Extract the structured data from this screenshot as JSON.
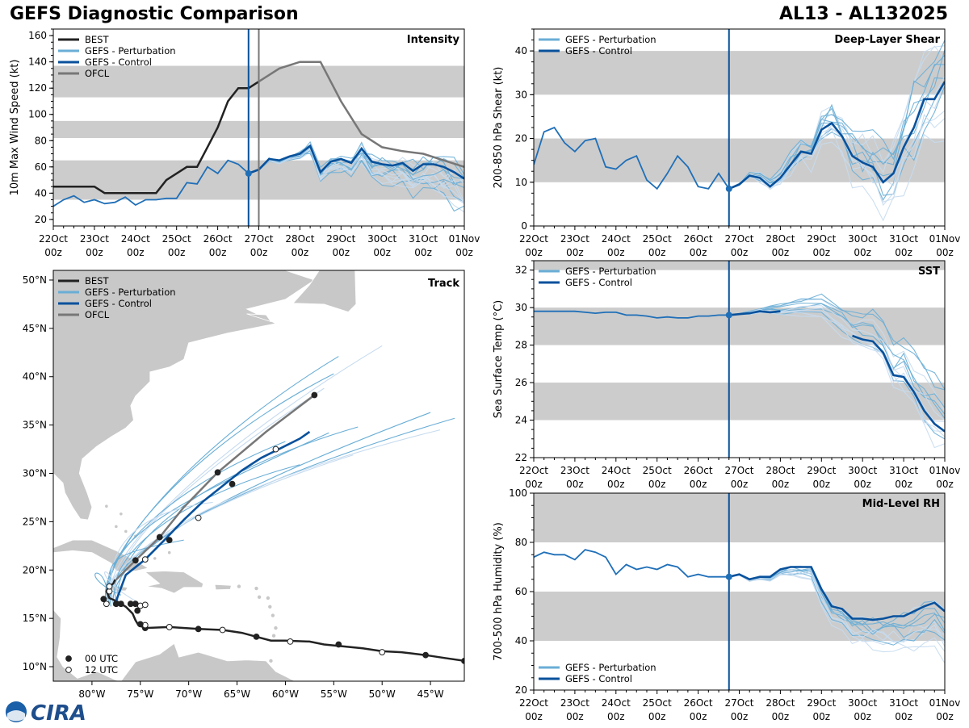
{
  "header": {
    "title": "GEFS Diagnostic Comparison",
    "storm": "AL13 - AL132025"
  },
  "colors": {
    "best": "#222222",
    "pert": "#6aaed6",
    "pert_light": "#c6dbef",
    "control": "#08519c",
    "ofcl": "#777777",
    "band": "#cccccc",
    "land": "#c8c8c8"
  },
  "time_axis": {
    "ticks": [
      "22Oct",
      "23Oct",
      "24Oct",
      "25Oct",
      "26Oct",
      "27Oct",
      "28Oct",
      "29Oct",
      "30Oct",
      "31Oct",
      "01Nov"
    ],
    "sub": "00z",
    "current_day": 4.75
  },
  "chart_data": [
    {
      "id": "intensity",
      "type": "line",
      "title": "Intensity",
      "ylabel": "10m Max Wind Speed (kt)",
      "ylim": [
        15,
        165
      ],
      "yticks": [
        20,
        40,
        60,
        80,
        100,
        120,
        140,
        160
      ],
      "bands": [
        [
          35,
          65
        ],
        [
          82,
          95
        ],
        [
          113,
          137
        ]
      ],
      "init_day": 4.75,
      "ofcl_init_day": 5.0,
      "legend": [
        "BEST",
        "GEFS - Perturbation",
        "GEFS - Control",
        "OFCL"
      ],
      "best": {
        "name": "BEST",
        "x": [
          0,
          0.25,
          0.5,
          0.75,
          1.0,
          1.25,
          1.5,
          1.75,
          2.0,
          2.25,
          2.5,
          2.75,
          3.0,
          3.25,
          3.5,
          3.75,
          4.0,
          4.25,
          4.5,
          4.75,
          5.0
        ],
        "values": [
          45,
          45,
          45,
          45,
          45,
          40,
          40,
          40,
          40,
          40,
          40,
          50,
          55,
          60,
          60,
          75,
          90,
          110,
          120,
          120,
          125
        ]
      },
      "hist": {
        "name": "GEFS - Control (analysis)",
        "x": [
          0,
          0.25,
          0.5,
          0.75,
          1.0,
          1.25,
          1.5,
          1.75,
          2.0,
          2.25,
          2.5,
          2.75,
          3.0,
          3.25,
          3.5,
          3.75,
          4.0,
          4.25,
          4.5,
          4.75
        ],
        "values": [
          30,
          35,
          38,
          33,
          35,
          32,
          33,
          37,
          31,
          35,
          35,
          36,
          36,
          48,
          47,
          60,
          55,
          65,
          62,
          55
        ]
      },
      "control": {
        "name": "GEFS - Control",
        "x": [
          4.75,
          5.0,
          5.25,
          5.5,
          5.75,
          6.0,
          6.25,
          6.5,
          6.75,
          7.0,
          7.25,
          7.5,
          7.75,
          8.0,
          8.25,
          8.5,
          8.75,
          9.0,
          9.25,
          9.5,
          9.75,
          10.0
        ],
        "values": [
          55,
          58,
          66,
          65,
          68,
          70,
          76,
          56,
          64,
          66,
          63,
          74,
          64,
          62,
          61,
          63,
          57,
          62,
          62,
          60,
          56,
          51
        ]
      },
      "ofcl": {
        "name": "OFCL",
        "x": [
          5.0,
          5.5,
          6.0,
          6.5,
          7.0,
          7.5,
          8.0,
          8.5,
          9.0,
          9.5,
          10.0
        ],
        "values": [
          125,
          135,
          140,
          140,
          110,
          85,
          75,
          72,
          70,
          65,
          60
        ]
      },
      "perturbations": [
        {
          "end": 35,
          "amp": 9
        },
        {
          "end": 40,
          "amp": 10
        },
        {
          "end": 45,
          "amp": 8
        },
        {
          "end": 48,
          "amp": 9
        },
        {
          "end": 50,
          "amp": 10
        },
        {
          "end": 30,
          "amp": 7
        },
        {
          "end": 25,
          "amp": 6
        },
        {
          "end": 42,
          "amp": 11
        },
        {
          "end": 55,
          "amp": 9
        },
        {
          "end": 38,
          "amp": 8
        },
        {
          "end": 33,
          "amp": 12
        },
        {
          "end": 46,
          "amp": 8
        },
        {
          "end": 52,
          "amp": 10
        },
        {
          "end": 36,
          "amp": 9
        },
        {
          "end": 44,
          "amp": 7
        },
        {
          "end": 28,
          "amp": 8
        }
      ]
    },
    {
      "id": "shear",
      "type": "line",
      "title": "Deep-Layer Shear",
      "ylabel": "200-850 hPa Shear (kt)",
      "ylim": [
        0,
        45
      ],
      "yticks": [
        0,
        10,
        20,
        30,
        40
      ],
      "bands": [
        [
          10,
          20
        ],
        [
          30,
          40
        ]
      ],
      "init_day": 4.75,
      "legend": [
        "GEFS - Perturbation",
        "GEFS - Control"
      ],
      "hist": {
        "name": "GEFS - Control (analysis)",
        "x": [
          0,
          0.25,
          0.5,
          0.75,
          1.0,
          1.25,
          1.5,
          1.75,
          2.0,
          2.25,
          2.5,
          2.75,
          3.0,
          3.25,
          3.5,
          3.75,
          4.0,
          4.25,
          4.5,
          4.75
        ],
        "values": [
          14,
          21.5,
          22.5,
          19,
          17,
          19.5,
          20,
          13.5,
          13,
          15,
          16,
          10.5,
          8.5,
          12,
          16,
          13.5,
          9,
          8.5,
          12,
          8.5
        ]
      },
      "control": {
        "name": "GEFS - Control",
        "x": [
          4.75,
          5.0,
          5.25,
          5.5,
          5.75,
          6.0,
          6.25,
          6.5,
          6.75,
          7.0,
          7.25,
          7.5,
          7.75,
          8.0,
          8.25,
          8.5,
          8.75,
          9.0,
          9.25,
          9.5,
          9.75,
          10.0
        ],
        "values": [
          8.5,
          9.5,
          11.5,
          11,
          9,
          11,
          14,
          17,
          16.5,
          22,
          23.5,
          20.5,
          16,
          14.5,
          13.5,
          10,
          12,
          18,
          22.5,
          29,
          29,
          33
        ]
      },
      "perturbations": [
        {
          "end": 38,
          "amp": 4
        },
        {
          "end": 42,
          "amp": 5
        },
        {
          "end": 30,
          "amp": 4
        },
        {
          "end": 25,
          "amp": 5
        },
        {
          "end": 35,
          "amp": 6
        },
        {
          "end": 44,
          "amp": 4
        },
        {
          "end": 28,
          "amp": 5
        },
        {
          "end": 33,
          "amp": 4
        },
        {
          "end": 40,
          "amp": 6
        },
        {
          "end": 22,
          "amp": 4
        },
        {
          "end": 36,
          "amp": 5
        },
        {
          "end": 31,
          "amp": 4
        },
        {
          "end": 43,
          "amp": 5
        },
        {
          "end": 27,
          "amp": 4
        }
      ]
    },
    {
      "id": "sst",
      "type": "line",
      "title": "SST",
      "ylabel": "Sea Surface Temp (°C)",
      "ylim": [
        22,
        32.5
      ],
      "yticks": [
        22,
        24,
        26,
        28,
        30,
        32
      ],
      "bands": [
        [
          24,
          26
        ],
        [
          28,
          30
        ],
        [
          32,
          32.5
        ]
      ],
      "init_day": 4.75,
      "legend": [
        "GEFS - Perturbation",
        "GEFS - Control"
      ],
      "hist": {
        "name": "GEFS - Control (analysis)",
        "x": [
          0,
          0.25,
          0.5,
          0.75,
          1.0,
          1.25,
          1.5,
          1.75,
          2.0,
          2.25,
          2.5,
          2.75,
          3.0,
          3.25,
          3.5,
          3.75,
          4.0,
          4.25,
          4.5,
          4.75
        ],
        "values": [
          29.8,
          29.8,
          29.8,
          29.8,
          29.8,
          29.75,
          29.7,
          29.75,
          29.75,
          29.6,
          29.6,
          29.55,
          29.45,
          29.5,
          29.45,
          29.45,
          29.55,
          29.55,
          29.6,
          29.6
        ]
      },
      "control_seg1": {
        "x": [
          4.75,
          5.0,
          5.25,
          5.5,
          5.75,
          6.0
        ],
        "values": [
          29.6,
          29.65,
          29.7,
          29.8,
          29.75,
          29.8
        ]
      },
      "control_seg2": {
        "x": [
          7.75,
          8.0,
          8.25,
          8.5,
          8.75,
          9.0,
          9.25,
          9.5,
          9.75,
          10.0
        ],
        "values": [
          28.5,
          28.3,
          28.2,
          27.6,
          26.4,
          26.3,
          25.5,
          24.5,
          23.8,
          23.4
        ]
      },
      "perturbations": [
        {
          "end": 24.2,
          "amp": 0.5
        },
        {
          "end": 25.0,
          "amp": 0.6
        },
        {
          "end": 23.0,
          "amp": 0.5
        },
        {
          "end": 22.4,
          "amp": 0.4
        },
        {
          "end": 24.8,
          "amp": 0.6
        },
        {
          "end": 23.6,
          "amp": 0.5
        },
        {
          "end": 25.8,
          "amp": 0.4
        },
        {
          "end": 22.9,
          "amp": 0.5
        },
        {
          "end": 24.5,
          "amp": 0.6
        },
        {
          "end": 23.3,
          "amp": 0.5
        },
        {
          "end": 26.0,
          "amp": 0.4
        },
        {
          "end": 24.0,
          "amp": 0.5
        }
      ]
    },
    {
      "id": "rh",
      "type": "line",
      "title": "Mid-Level RH",
      "ylabel": "700-500 hPa Humidity (%)",
      "ylim": [
        20,
        100
      ],
      "yticks": [
        20,
        40,
        60,
        80,
        100
      ],
      "bands": [
        [
          40,
          60
        ],
        [
          80,
          100
        ]
      ],
      "init_day": 4.75,
      "legend": [
        "GEFS - Perturbation",
        "GEFS - Control"
      ],
      "hist": {
        "name": "GEFS - Control (analysis)",
        "x": [
          0,
          0.25,
          0.5,
          0.75,
          1.0,
          1.25,
          1.5,
          1.75,
          2.0,
          2.25,
          2.5,
          2.75,
          3.0,
          3.25,
          3.5,
          3.75,
          4.0,
          4.25,
          4.5,
          4.75
        ],
        "values": [
          74,
          76,
          75,
          75,
          73,
          77,
          76,
          74,
          67,
          71,
          69,
          70,
          69,
          71,
          70,
          66,
          67,
          66,
          66,
          66
        ]
      },
      "control": {
        "name": "GEFS - Control",
        "x": [
          4.75,
          5.0,
          5.25,
          5.5,
          5.75,
          6.0,
          6.25,
          6.5,
          6.75,
          7.0,
          7.25,
          7.5,
          7.75,
          8.0,
          8.25,
          8.5,
          8.75,
          9.0,
          9.25,
          9.5,
          9.75,
          10.0
        ],
        "values": [
          66,
          67,
          65,
          66,
          66,
          69,
          70,
          70,
          70,
          61,
          54,
          53,
          49,
          49,
          48.5,
          49,
          50,
          50,
          52,
          54,
          55.5,
          52
        ]
      },
      "perturbations": [
        {
          "end": 45,
          "amp": 3
        },
        {
          "end": 40,
          "amp": 3
        },
        {
          "end": 50,
          "amp": 4
        },
        {
          "end": 35,
          "amp": 3
        },
        {
          "end": 48,
          "amp": 3
        },
        {
          "end": 42,
          "amp": 4
        },
        {
          "end": 38,
          "amp": 3
        },
        {
          "end": 52,
          "amp": 3
        },
        {
          "end": 44,
          "amp": 4
        },
        {
          "end": 33,
          "amp": 3
        },
        {
          "end": 47,
          "amp": 3
        },
        {
          "end": 41,
          "amp": 4
        }
      ]
    },
    {
      "id": "track",
      "type": "scatter",
      "title": "Track",
      "lon_range": [
        -84,
        -41.5
      ],
      "lat_range": [
        8.5,
        51
      ],
      "lon_ticks": [
        -80,
        -75,
        -70,
        -65,
        -60,
        -55,
        -50,
        -45
      ],
      "lon_labels": [
        "80°W",
        "75°W",
        "70°W",
        "65°W",
        "60°W",
        "55°W",
        "50°W",
        "45°W"
      ],
      "lat_ticks": [
        10,
        15,
        20,
        25,
        30,
        35,
        40,
        45,
        50
      ],
      "lat_labels": [
        "10°N",
        "15°N",
        "20°N",
        "25°N",
        "30°N",
        "35°N",
        "40°N",
        "45°N",
        "50°N"
      ],
      "legend": [
        "BEST",
        "GEFS - Perturbation",
        "GEFS - Control",
        "OFCL"
      ],
      "marker_legend": [
        "00 UTC",
        "12 UTC"
      ],
      "best": {
        "lon": [
          -41.5,
          -43.5,
          -45.5,
          -48,
          -50,
          -52,
          -54,
          -56,
          -57.5,
          -60,
          -61.5,
          -63,
          -64.5,
          -66.5,
          -69,
          -72,
          -74.5,
          -75.2,
          -75.5,
          -75.8,
          -76.5,
          -77.5,
          -78.2,
          -78.5,
          -78.3,
          -77.8,
          -77.6
        ],
        "lat": [
          10.6,
          10.9,
          11.2,
          11.5,
          11.6,
          11.9,
          12.1,
          12.3,
          12.6,
          12.7,
          12.7,
          13.1,
          13.5,
          13.8,
          13.9,
          14.1,
          14.0,
          14.3,
          14.8,
          15.5,
          16.2,
          16.8,
          17.1,
          17.8,
          18.2,
          18.6,
          19.0
        ]
      },
      "best_pts": [
        {
          "lon": -41.5,
          "lat": 10.6,
          "t": "00"
        },
        {
          "lon": -45.5,
          "lat": 11.2,
          "t": "00"
        },
        {
          "lon": -50.0,
          "lat": 11.5,
          "t": "12"
        },
        {
          "lon": -54.5,
          "lat": 12.3,
          "t": "00"
        },
        {
          "lon": -59.5,
          "lat": 12.6,
          "t": "12"
        },
        {
          "lon": -63.0,
          "lat": 13.1,
          "t": "00"
        },
        {
          "lon": -66.5,
          "lat": 13.8,
          "t": "12"
        },
        {
          "lon": -69.0,
          "lat": 13.9,
          "t": "00"
        },
        {
          "lon": -72.0,
          "lat": 14.1,
          "t": "12"
        },
        {
          "lon": -74.5,
          "lat": 14.0,
          "t": "00"
        },
        {
          "lon": -74.5,
          "lat": 14.3,
          "t": "12"
        },
        {
          "lon": -75.0,
          "lat": 14.4,
          "t": "00"
        },
        {
          "lon": -75.3,
          "lat": 15.8,
          "t": "00"
        },
        {
          "lon": -75.0,
          "lat": 16.3,
          "t": "12"
        },
        {
          "lon": -75.5,
          "lat": 16.5,
          "t": "00"
        },
        {
          "lon": -76.0,
          "lat": 16.5,
          "t": "00"
        },
        {
          "lon": -77.0,
          "lat": 16.5,
          "t": "00"
        },
        {
          "lon": -77.5,
          "lat": 16.5,
          "t": "00"
        },
        {
          "lon": -78.5,
          "lat": 16.5,
          "t": "12"
        },
        {
          "lon": -78.8,
          "lat": 17.0,
          "t": "00"
        },
        {
          "lon": -78.2,
          "lat": 17.8,
          "t": "12"
        },
        {
          "lon": -78.2,
          "lat": 18.3,
          "t": "12"
        },
        {
          "lon": -74.5,
          "lat": 16.4,
          "t": "12"
        }
      ],
      "ofcl": {
        "lon": [
          -77.5,
          -75.5,
          -73.0,
          -70.5,
          -67.0,
          -62.0,
          -57.0
        ],
        "lat": [
          19.0,
          21.0,
          23.4,
          26.5,
          30.1,
          34.3,
          38.1
        ]
      },
      "ofcl_pts": [
        {
          "lon": -75.5,
          "lat": 21.0
        },
        {
          "lon": -73.0,
          "lat": 23.4
        },
        {
          "lon": -67.0,
          "lat": 30.1
        },
        {
          "lon": -57.0,
          "lat": 38.1
        }
      ],
      "control": {
        "lon": [
          -77.5,
          -76.5,
          -74.5,
          -72.5,
          -70.5,
          -68.5,
          -66.5,
          -64.5,
          -62.5,
          -60.5,
          -58.5,
          -57.5
        ],
        "lat": [
          16.8,
          19.5,
          21.1,
          23.1,
          25.2,
          27.1,
          28.7,
          30.3,
          31.6,
          32.6,
          33.6,
          34.3
        ]
      },
      "control_pts": [
        {
          "lon": -74.5,
          "lat": 21.1,
          "t": "12"
        },
        {
          "lon": -72.0,
          "lat": 23.1,
          "t": "00"
        },
        {
          "lon": -69.0,
          "lat": 25.4,
          "t": "12"
        },
        {
          "lon": -65.5,
          "lat": 28.9,
          "t": "00"
        },
        {
          "lon": -61.0,
          "lat": 32.5,
          "t": "12"
        }
      ],
      "pert_ends": [
        {
          "lon": -50.0,
          "lat": 43.2
        },
        {
          "lon": -54.5,
          "lat": 42.1
        },
        {
          "lon": -55.0,
          "lat": 40.3
        },
        {
          "lon": -56.0,
          "lat": 38.8
        },
        {
          "lon": -45.0,
          "lat": 36.3
        },
        {
          "lon": -42.5,
          "lat": 35.7
        },
        {
          "lon": -44.0,
          "lat": 34.5
        },
        {
          "lon": -52.5,
          "lat": 34.8
        },
        {
          "lon": -55.5,
          "lat": 34.2
        },
        {
          "lon": -53.0,
          "lat": 31.9
        },
        {
          "lon": -60.0,
          "lat": 33.3
        },
        {
          "lon": -58.5,
          "lat": 30.9
        },
        {
          "lon": -67.5,
          "lat": 27.0
        },
        {
          "lon": -70.5,
          "lat": 23.1
        },
        {
          "lon": -77.0,
          "lat": 17.4
        },
        {
          "lon": -75.5,
          "lat": 16.8
        }
      ]
    }
  ],
  "logo": {
    "text": "CIRA"
  }
}
